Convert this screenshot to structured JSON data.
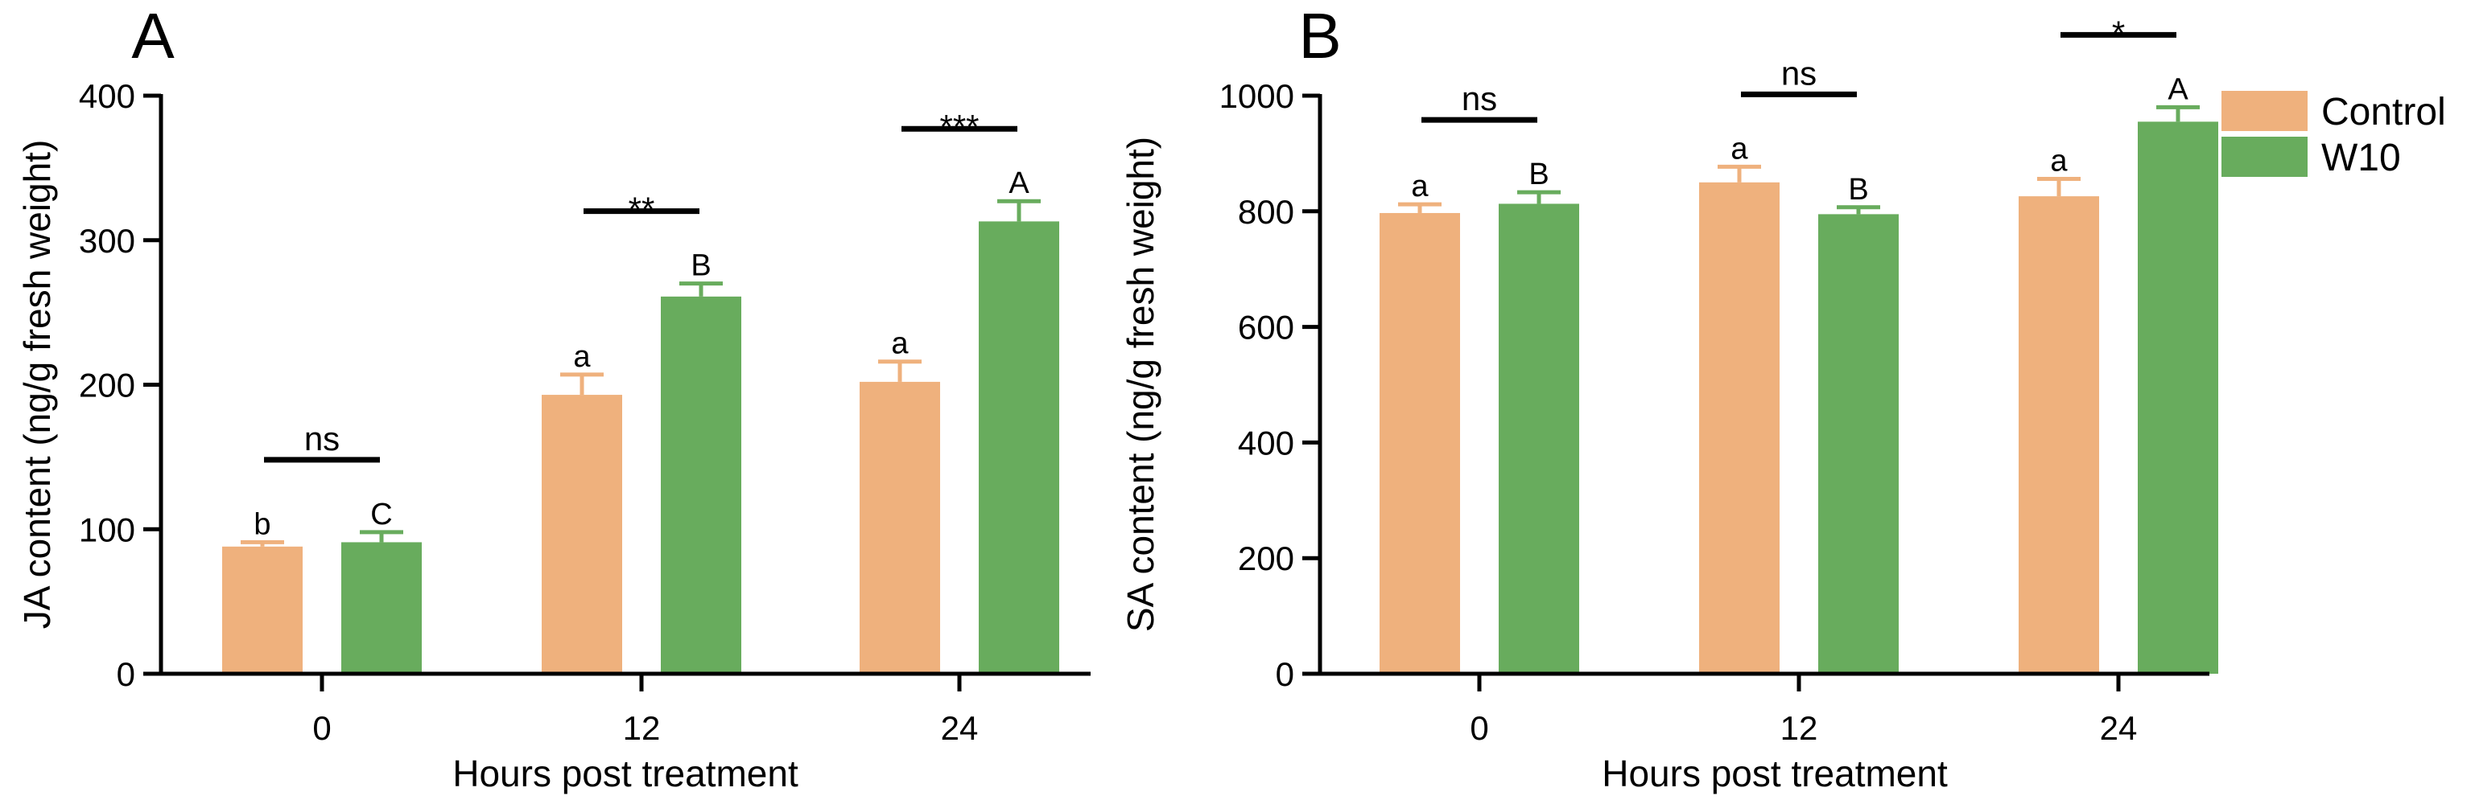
{
  "colors": {
    "control": "#EFB17D",
    "w10": "#68AC5D",
    "axis": "#000000"
  },
  "legend": [
    {
      "label": "Control",
      "color": "#EFB17D"
    },
    {
      "label": "W10",
      "color": "#68AC5D"
    }
  ],
  "chart_data": [
    {
      "panel": "A",
      "type": "bar",
      "xlabel": "Hours post treatment",
      "ylabel": "JA content (ng/g fresh weight)",
      "ylim": [
        0,
        400
      ],
      "yticks": [
        0,
        100,
        200,
        300,
        400
      ],
      "categories": [
        "0",
        "12",
        "24"
      ],
      "series": [
        {
          "name": "Control",
          "values": [
            88,
            193,
            202
          ],
          "errors": [
            3,
            14,
            14
          ],
          "letters": [
            "b",
            "a",
            "a"
          ]
        },
        {
          "name": "W10",
          "values": [
            91,
            261,
            313
          ],
          "errors": [
            7,
            9,
            14
          ],
          "letters": [
            "C",
            "B",
            "A"
          ]
        }
      ],
      "significance": [
        "ns",
        "**",
        "***"
      ]
    },
    {
      "panel": "B",
      "type": "bar",
      "xlabel": "Hours post treatment",
      "ylabel": "SA content (ng/g fresh weight)",
      "ylim": [
        0,
        1000
      ],
      "yticks": [
        0,
        200,
        400,
        600,
        800,
        1000
      ],
      "categories": [
        "0",
        "12",
        "24"
      ],
      "series": [
        {
          "name": "Control",
          "values": [
            797,
            850,
            826
          ],
          "errors": [
            15,
            27,
            30
          ],
          "letters": [
            "a",
            "a",
            "a"
          ]
        },
        {
          "name": "W10",
          "values": [
            813,
            795,
            955
          ],
          "errors": [
            20,
            12,
            25
          ],
          "letters": [
            "B",
            "B",
            "A"
          ]
        }
      ],
      "significance": [
        "ns",
        "ns",
        "*"
      ]
    }
  ]
}
